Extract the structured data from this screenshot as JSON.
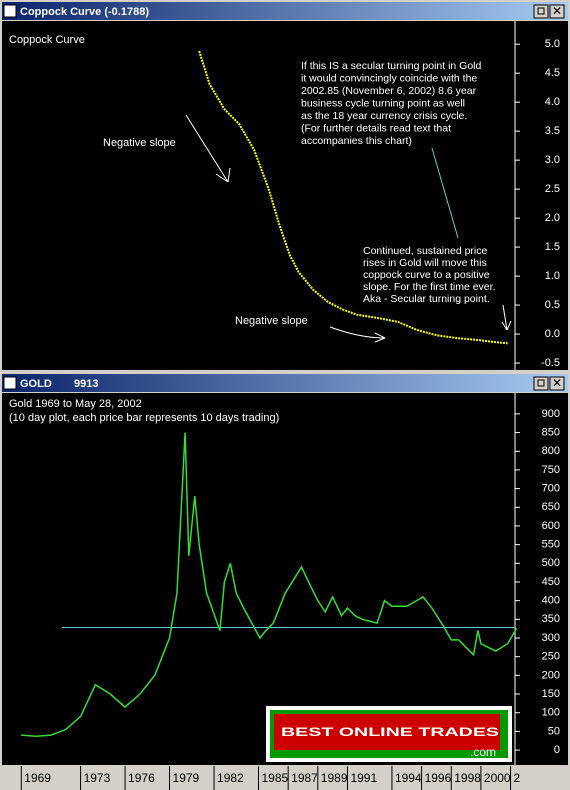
{
  "chart_data": [
    {
      "type": "line",
      "window_title": "Coppock Curve (-0.1788)",
      "title": "Coppock Curve",
      "series": [
        {
          "name": "Coppock Curve",
          "color": "#ffff00",
          "x": [
            1981.0,
            1981.7,
            1982.7,
            1983.7,
            1984.7,
            1985.7,
            1986.4,
            1987.1,
            1987.7,
            1988.7,
            1989.7,
            1990.7,
            1991.7,
            1993.0,
            1994.4,
            1995.7,
            1997.0,
            1998.4,
            1999.7,
            2001.0,
            2001.8
          ],
          "values": [
            4.88,
            4.31,
            3.88,
            3.62,
            3.18,
            2.49,
            1.89,
            1.37,
            1.07,
            0.76,
            0.55,
            0.42,
            0.33,
            0.28,
            0.21,
            0.07,
            -0.02,
            -0.07,
            -0.1,
            -0.14,
            -0.16
          ]
        }
      ],
      "xlim": [
        1967.7,
        2002.3
      ],
      "ylim": [
        -0.62,
        5.4
      ],
      "yticks": [
        {
          "value": 5,
          "label": "5.0"
        },
        {
          "value": 4.5,
          "label": "4.5"
        },
        {
          "value": 4,
          "label": "4.0"
        },
        {
          "value": 3.5,
          "label": "3.5"
        },
        {
          "value": 3,
          "label": "3.0"
        },
        {
          "value": 2.5,
          "label": "2.5"
        },
        {
          "value": 2,
          "label": "2.0"
        },
        {
          "value": 1.5,
          "label": "1.5"
        },
        {
          "value": 1,
          "label": "1.0"
        },
        {
          "value": 0.5,
          "label": "0.5"
        },
        {
          "value": 0,
          "label": "0.0"
        },
        {
          "value": -0.5,
          "label": "-0.5"
        }
      ],
      "annotations": [
        "Negative slope",
        "Negative slope",
        [
          "If this IS a secular turning point in Gold",
          "it would convincingly coincide with the",
          "2002.85 (November 6, 2002) 8.6 year",
          "business cycle turning point as well",
          "as the 18 year currency crisis cycle.",
          "(For further details read text that",
          "accompanies this chart)"
        ],
        [
          "Continued, sustained price",
          "rises in Gold will move this",
          "coppock curve to a positive",
          "slope. For the first time ever.",
          "Aka - Secular turning point."
        ]
      ]
    },
    {
      "type": "line",
      "window_title": "GOLD",
      "symbol_code": "9913",
      "title": "Gold 1969 to May 28, 2002",
      "subtitle": "(10 day plot, each price bar represents 10 days trading)",
      "series": [
        {
          "name": "GOLD",
          "color": "#33dd33",
          "x": [
            1969,
            1970,
            1971,
            1972,
            1973,
            1974,
            1975,
            1976,
            1977,
            1978,
            1979,
            1979.5,
            1980.05,
            1980.3,
            1980.7,
            1981,
            1981.5,
            1982.4,
            1982.7,
            1983.1,
            1983.5,
            1984,
            1985.1,
            1985.5,
            1986,
            1986.8,
            1987.9,
            1988.5,
            1989,
            1989.5,
            1990,
            1990.6,
            1991,
            1991.5,
            1992,
            1993,
            1993.5,
            1994,
            1995,
            1996.1,
            1996.7,
            1997.5,
            1998,
            1998.5,
            1999.5,
            1999.8,
            2000,
            2001,
            2001.8,
            2002.4
          ],
          "values": [
            40,
            37,
            40,
            55,
            90,
            175,
            150,
            115,
            150,
            200,
            300,
            420,
            850,
            520,
            680,
            550,
            420,
            320,
            450,
            500,
            420,
            380,
            300,
            320,
            340,
            420,
            490,
            440,
            400,
            370,
            410,
            360,
            380,
            360,
            350,
            340,
            400,
            385,
            385,
            410,
            380,
            330,
            295,
            295,
            255,
            320,
            285,
            265,
            285,
            325
          ]
        }
      ],
      "reference_line": 328,
      "reference_color": "#66cccc",
      "xlim": [
        1967.7,
        2002.3
      ],
      "ylim": [
        -40,
        956
      ],
      "yticks": [
        0,
        50,
        100,
        150,
        200,
        250,
        300,
        350,
        400,
        450,
        500,
        550,
        600,
        650,
        700,
        750,
        800,
        850,
        900
      ],
      "xticks": [
        1969,
        1973,
        1976,
        1979,
        1982,
        1985,
        1987,
        1989,
        1991,
        1994,
        1996,
        1998,
        2000,
        {
          "value": 2002,
          "label": "2"
        }
      ],
      "logo": {
        "text": "BEST ONLINE TRADES",
        "suffix": ".com"
      }
    }
  ]
}
